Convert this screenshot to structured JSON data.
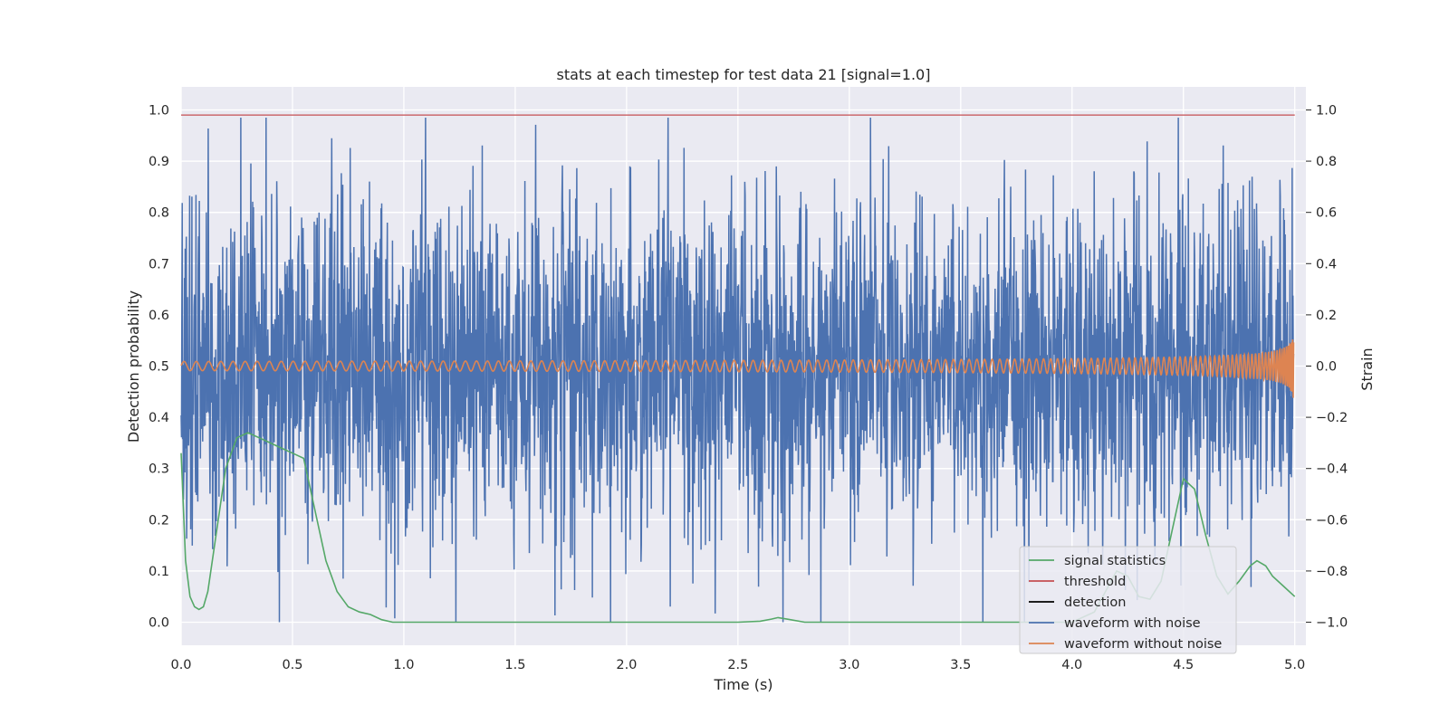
{
  "chart_data": {
    "type": "line",
    "title": "stats at each timestep for test data 21 [signal=1.0]",
    "xlabel": "Time (s)",
    "ylabel": "Detection probability",
    "y2label": "Strain",
    "xlim": [
      0.0,
      5.05
    ],
    "ylim": [
      -0.045,
      1.045
    ],
    "y2lim": [
      -1.09,
      1.09
    ],
    "x_ticks": [
      0.0,
      0.5,
      1.0,
      1.5,
      2.0,
      2.5,
      3.0,
      3.5,
      4.0,
      4.5,
      5.0
    ],
    "x_tick_labels": [
      "0.0",
      "0.5",
      "1.0",
      "1.5",
      "2.0",
      "2.5",
      "3.0",
      "3.5",
      "4.0",
      "4.5",
      "5.0"
    ],
    "y_ticks": [
      0.0,
      0.1,
      0.2,
      0.3,
      0.4,
      0.5,
      0.6,
      0.7,
      0.8,
      0.9,
      1.0
    ],
    "y_tick_labels": [
      "0.0",
      "0.1",
      "0.2",
      "0.3",
      "0.4",
      "0.5",
      "0.6",
      "0.7",
      "0.8",
      "0.9",
      "1.0"
    ],
    "y2_ticks": [
      -1.0,
      -0.8,
      -0.6,
      -0.4,
      -0.2,
      0.0,
      0.2,
      0.4,
      0.6,
      0.8,
      1.0
    ],
    "y2_tick_labels": [
      "−1.0",
      "−0.8",
      "−0.6",
      "−0.4",
      "−0.2",
      "0.0",
      "0.2",
      "0.4",
      "0.6",
      "0.8",
      "1.0"
    ],
    "grid": true,
    "legend_position": "lower-right",
    "background_color": "#eaeaf2",
    "series": [
      {
        "name": "signal statistics",
        "axis": "left",
        "color": "#55a868",
        "x": [
          0.0,
          0.02,
          0.04,
          0.06,
          0.08,
          0.1,
          0.12,
          0.15,
          0.2,
          0.25,
          0.3,
          0.35,
          0.4,
          0.45,
          0.5,
          0.55,
          0.6,
          0.65,
          0.7,
          0.75,
          0.8,
          0.85,
          0.9,
          0.95,
          1.0,
          1.5,
          2.0,
          2.5,
          2.6,
          2.65,
          2.68,
          2.72,
          2.8,
          3.0,
          3.5,
          3.8,
          3.9,
          4.0,
          4.1,
          4.15,
          4.2,
          4.25,
          4.3,
          4.35,
          4.4,
          4.45,
          4.5,
          4.55,
          4.6,
          4.65,
          4.7,
          4.75,
          4.8,
          4.83,
          4.87,
          4.9,
          4.95,
          5.0
        ],
        "y": [
          0.33,
          0.12,
          0.05,
          0.03,
          0.025,
          0.03,
          0.06,
          0.15,
          0.3,
          0.36,
          0.37,
          0.36,
          0.35,
          0.34,
          0.33,
          0.32,
          0.22,
          0.12,
          0.06,
          0.03,
          0.02,
          0.015,
          0.005,
          0.0,
          0.0,
          0.0,
          0.0,
          0.0,
          0.002,
          0.006,
          0.009,
          0.006,
          0.0,
          0.0,
          0.0,
          0.0,
          0.0,
          0.0,
          0.02,
          0.06,
          0.1,
          0.09,
          0.05,
          0.045,
          0.08,
          0.18,
          0.28,
          0.26,
          0.17,
          0.09,
          0.055,
          0.08,
          0.11,
          0.12,
          0.11,
          0.09,
          0.07,
          0.05
        ]
      },
      {
        "name": "threshold",
        "axis": "left",
        "color": "#c44e52",
        "x": [
          0.0,
          5.0
        ],
        "y": [
          0.99,
          0.99
        ]
      },
      {
        "name": "detection",
        "axis": "left",
        "color": "#000000",
        "x": [],
        "y": []
      },
      {
        "name": "waveform with noise",
        "axis": "right",
        "color": "#4c72b0",
        "description_of_values": "dense noise, amplitude mostly within ±0.5, peaks to about ±0.95",
        "x": [],
        "y": []
      },
      {
        "name": "waveform without noise",
        "axis": "right",
        "color": "#dd8452",
        "x": [],
        "y": []
      }
    ]
  }
}
